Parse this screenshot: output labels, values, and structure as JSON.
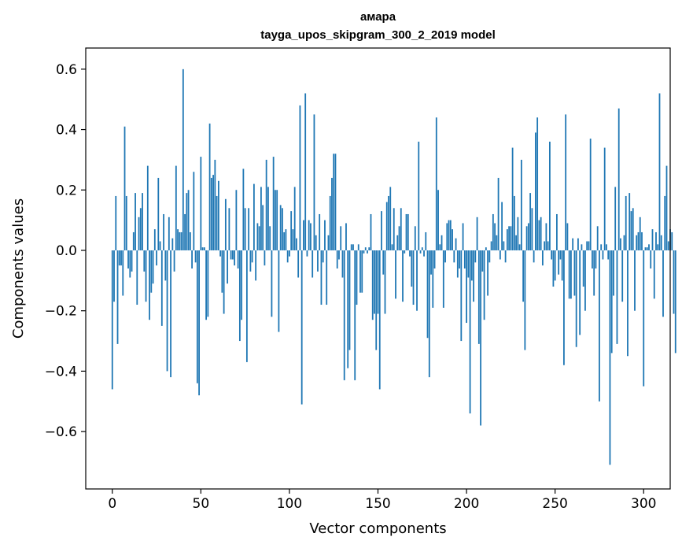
{
  "chart_data": {
    "type": "bar",
    "title_lines": [
      "амара",
      "tayga_upos_skipgram_300_2_2019 model"
    ],
    "xlabel": "Vector components",
    "ylabel": "Components values",
    "xlim": [
      -15,
      315
    ],
    "ylim": [
      -0.79,
      0.67
    ],
    "xticks": [
      0,
      50,
      100,
      150,
      200,
      250,
      300
    ],
    "yticks": [
      -0.6,
      -0.4,
      -0.2,
      0.0,
      0.2,
      0.4,
      0.6
    ],
    "ytick_labels": [
      "−0.6",
      "−0.4",
      "−0.2",
      "0.0",
      "0.2",
      "0.4",
      "0.6"
    ],
    "grid": false,
    "bar_color": "#1f77b4",
    "series": [
      {
        "values": [
          -0.46,
          -0.17,
          0.18,
          -0.31,
          -0.05,
          -0.05,
          -0.15,
          0.41,
          0.18,
          -0.06,
          -0.09,
          -0.07,
          0.06,
          0.19,
          -0.18,
          0.11,
          0.14,
          0.19,
          -0.07,
          -0.17,
          0.28,
          -0.23,
          -0.14,
          -0.11,
          0.07,
          -0.05,
          0.24,
          0.03,
          -0.25,
          0.12,
          -0.1,
          -0.4,
          0.11,
          -0.42,
          0.04,
          -0.07,
          0.28,
          0.07,
          0.06,
          0.06,
          0.6,
          0.12,
          0.19,
          0.2,
          0.06,
          -0.06,
          0.26,
          -0.04,
          -0.44,
          -0.48,
          0.31,
          0.01,
          0.01,
          -0.23,
          -0.22,
          0.42,
          0.24,
          0.25,
          0.3,
          0.18,
          0.23,
          -0.02,
          -0.14,
          -0.21,
          0.17,
          -0.11,
          0.14,
          -0.03,
          -0.03,
          -0.05,
          0.2,
          -0.06,
          -0.3,
          -0.23,
          0.27,
          0.14,
          -0.37,
          0.14,
          -0.07,
          -0.04,
          0.22,
          -0.1,
          0.09,
          0.08,
          0.21,
          0.15,
          -0.05,
          0.3,
          0.21,
          0.08,
          -0.22,
          0.31,
          0.2,
          0.2,
          -0.27,
          0.15,
          0.14,
          0.06,
          0.07,
          -0.04,
          -0.02,
          0.13,
          0.07,
          0.21,
          0.04,
          -0.09,
          0.48,
          -0.51,
          0.1,
          0.52,
          -0.02,
          0.1,
          0.09,
          -0.09,
          0.45,
          0.05,
          -0.07,
          0.12,
          -0.18,
          -0.04,
          0.1,
          -0.18,
          0.05,
          0.18,
          0.24,
          0.32,
          0.32,
          -0.06,
          -0.03,
          0.08,
          -0.09,
          -0.43,
          0.09,
          -0.39,
          -0.33,
          0.02,
          0.02,
          -0.43,
          -0.18,
          0.02,
          -0.14,
          -0.14,
          -0.01,
          0.01,
          -0.01,
          0.01,
          0.12,
          -0.23,
          -0.21,
          -0.33,
          -0.21,
          -0.46,
          0.13,
          -0.08,
          -0.21,
          0.16,
          0.18,
          0.21,
          0.02,
          0.14,
          -0.16,
          0.05,
          0.08,
          0.14,
          -0.17,
          -0.01,
          0.12,
          0.12,
          -0.02,
          -0.12,
          -0.18,
          0.08,
          -0.2,
          0.36,
          -0.01,
          0.01,
          -0.02,
          0.06,
          -0.29,
          -0.42,
          -0.08,
          -0.19,
          -0.06,
          0.44,
          0.2,
          0.02,
          0.05,
          -0.19,
          -0.04,
          0.09,
          0.1,
          0.1,
          0.07,
          -0.04,
          0.04,
          -0.09,
          -0.06,
          -0.3,
          0.09,
          -0.06,
          -0.24,
          -0.09,
          -0.54,
          -0.1,
          -0.17,
          -0.04,
          0.11,
          -0.31,
          -0.58,
          -0.07,
          -0.23,
          0.01,
          -0.15,
          -0.04,
          0.03,
          0.12,
          0.09,
          0.05,
          0.24,
          -0.03,
          0.16,
          0.03,
          -0.04,
          0.07,
          0.08,
          0.08,
          0.34,
          0.18,
          0.05,
          0.11,
          0.02,
          0.3,
          -0.17,
          -0.33,
          0.08,
          0.09,
          0.19,
          0.14,
          -0.04,
          0.39,
          0.44,
          0.1,
          0.11,
          -0.05,
          0.03,
          0.09,
          0.03,
          0.36,
          -0.03,
          -0.12,
          -0.1,
          0.12,
          -0.08,
          -0.03,
          -0.1,
          -0.38,
          0.45,
          0.09,
          -0.16,
          -0.16,
          0.04,
          -0.15,
          -0.32,
          0.04,
          -0.28,
          0.02,
          -0.12,
          -0.2,
          0.03,
          0.03,
          0.37,
          -0.06,
          -0.15,
          -0.06,
          0.08,
          -0.5,
          0.02,
          -0.03,
          0.34,
          0.02,
          -0.03,
          -0.71,
          -0.34,
          -0.15,
          0.21,
          -0.31,
          0.47,
          0.04,
          -0.17,
          0.05,
          0.18,
          -0.35,
          0.19,
          0.13,
          0.14,
          -0.2,
          0.05,
          0.06,
          0.11,
          0.06,
          -0.45,
          0.01,
          0.01,
          0.02,
          -0.06,
          0.07,
          -0.16,
          0.06,
          0.02,
          0.52,
          0.05,
          -0.22,
          0.18,
          0.28,
          0.03,
          0.07,
          0.06,
          -0.21,
          -0.34
        ]
      }
    ]
  }
}
